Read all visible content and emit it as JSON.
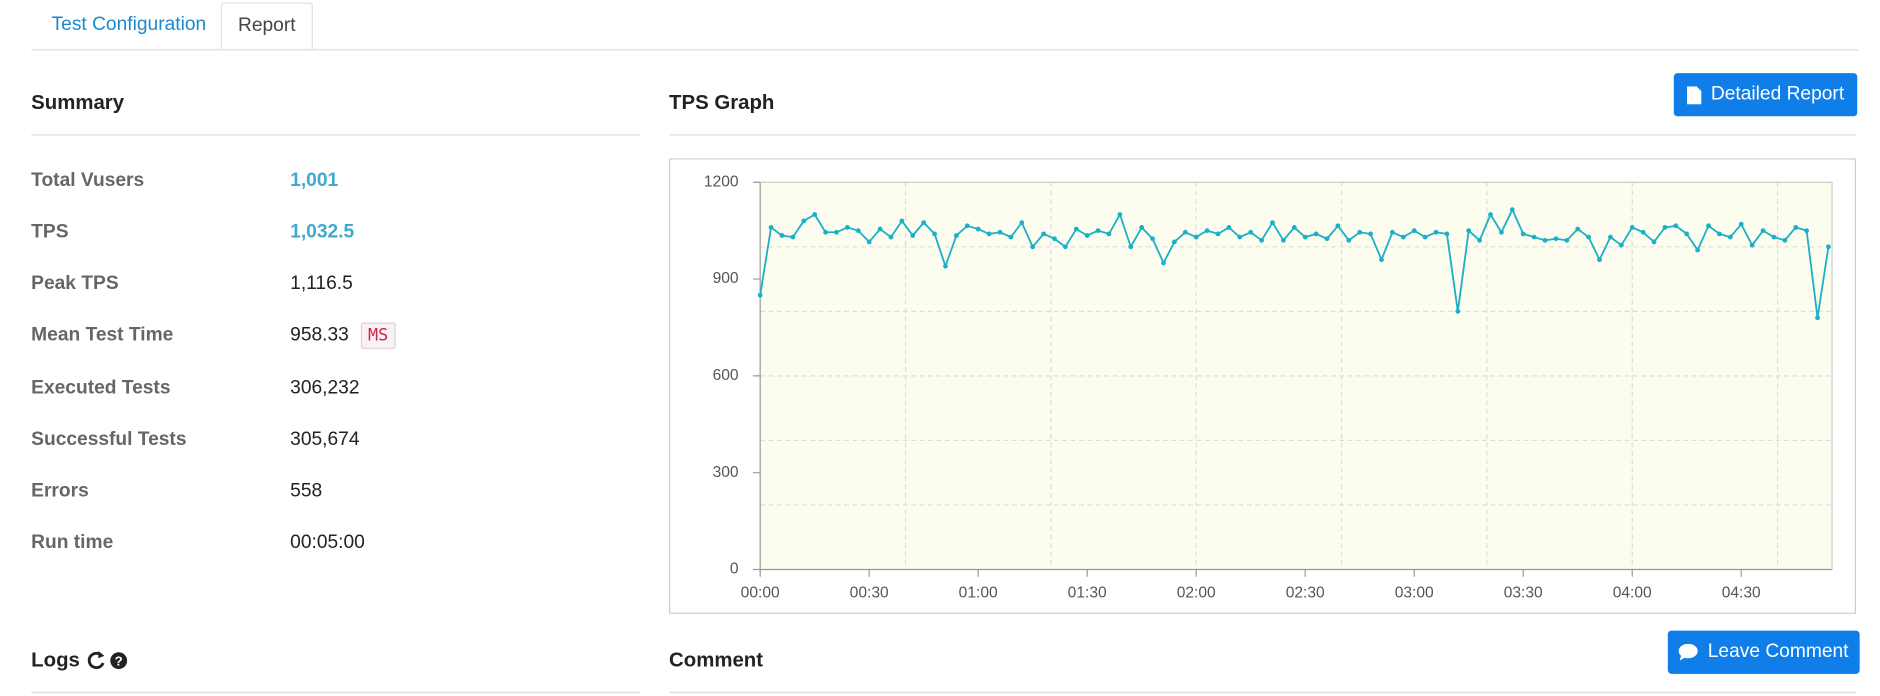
{
  "tabs": [
    "Test Configuration",
    "Report"
  ],
  "summary": {
    "title": "Summary",
    "rows": [
      {
        "label": "Total Vusers",
        "value": "1,001"
      },
      {
        "label": "TPS",
        "value": "1,032.5"
      },
      {
        "label": "Peak TPS",
        "value": "1,116.5"
      },
      {
        "label": "Mean Test Time",
        "value": "958.33",
        "unit": "MS"
      },
      {
        "label": "Executed Tests",
        "value": "306,232"
      },
      {
        "label": "Successful Tests",
        "value": "305,674"
      },
      {
        "label": "Errors",
        "value": "558"
      },
      {
        "label": "Run time",
        "value": "00:05:00"
      }
    ]
  },
  "chart_data": {
    "type": "line",
    "title": "TPS Graph",
    "color": "#1ab0c8",
    "x": [
      0,
      3,
      6,
      9,
      12,
      15,
      18,
      21,
      24,
      27,
      30,
      33,
      36,
      39,
      42,
      45,
      48,
      51,
      54,
      57,
      60,
      63,
      66,
      69,
      72,
      75,
      78,
      81,
      84,
      87,
      90,
      93,
      96,
      99,
      102,
      105,
      108,
      111,
      114,
      117,
      120,
      123,
      126,
      129,
      132,
      135,
      138,
      141,
      144,
      147,
      150,
      153,
      156,
      159,
      162,
      165,
      168,
      171,
      174,
      177,
      180,
      183,
      186,
      189,
      192,
      195,
      198,
      201,
      204,
      207,
      210,
      213,
      216,
      219,
      222,
      225,
      228,
      231,
      234,
      237,
      240,
      243,
      246,
      249,
      252,
      255,
      258,
      261,
      264,
      267,
      270,
      273,
      276,
      279,
      282,
      285,
      288,
      291,
      294
    ],
    "values": [
      850,
      1060,
      1035,
      1030,
      1080,
      1100,
      1045,
      1045,
      1060,
      1050,
      1015,
      1055,
      1030,
      1080,
      1035,
      1075,
      1040,
      940,
      1035,
      1065,
      1055,
      1040,
      1045,
      1030,
      1075,
      1000,
      1040,
      1025,
      1000,
      1055,
      1035,
      1050,
      1040,
      1100,
      1000,
      1060,
      1025,
      950,
      1015,
      1045,
      1030,
      1050,
      1040,
      1060,
      1030,
      1045,
      1020,
      1075,
      1020,
      1060,
      1030,
      1040,
      1025,
      1065,
      1020,
      1045,
      1040,
      960,
      1045,
      1030,
      1050,
      1030,
      1045,
      1040,
      800,
      1050,
      1020,
      1100,
      1045,
      1115,
      1040,
      1030,
      1020,
      1025,
      1020,
      1055,
      1030,
      960,
      1030,
      1005,
      1060,
      1045,
      1015,
      1060,
      1065,
      1040,
      990,
      1065,
      1040,
      1030,
      1070,
      1005,
      1050,
      1030,
      1020,
      1060,
      1050,
      780,
      1000
    ],
    "xlim": [
      0,
      295
    ],
    "ylim": [
      0,
      1200
    ],
    "xticks": [
      {
        "value": 0,
        "label": "00:00"
      },
      {
        "value": 30,
        "label": "00:30"
      },
      {
        "value": 60,
        "label": "01:00"
      },
      {
        "value": 90,
        "label": "01:30"
      },
      {
        "value": 120,
        "label": "02:00"
      },
      {
        "value": 150,
        "label": "02:30"
      },
      {
        "value": 180,
        "label": "03:00"
      },
      {
        "value": 210,
        "label": "03:30"
      },
      {
        "value": 240,
        "label": "04:00"
      },
      {
        "value": 270,
        "label": "04:30"
      }
    ],
    "yticks": [
      0,
      300,
      600,
      900,
      1200
    ],
    "xgrid": [
      40,
      80,
      120,
      160,
      200,
      240,
      280
    ],
    "ygrid": [
      200,
      400,
      600,
      800,
      1000,
      1200
    ],
    "grid": true
  },
  "buttons": {
    "detailed_report": "Detailed Report",
    "leave_comment": "Leave Comment"
  },
  "logs": {
    "title": "Logs"
  },
  "comment": {
    "title": "Comment"
  }
}
